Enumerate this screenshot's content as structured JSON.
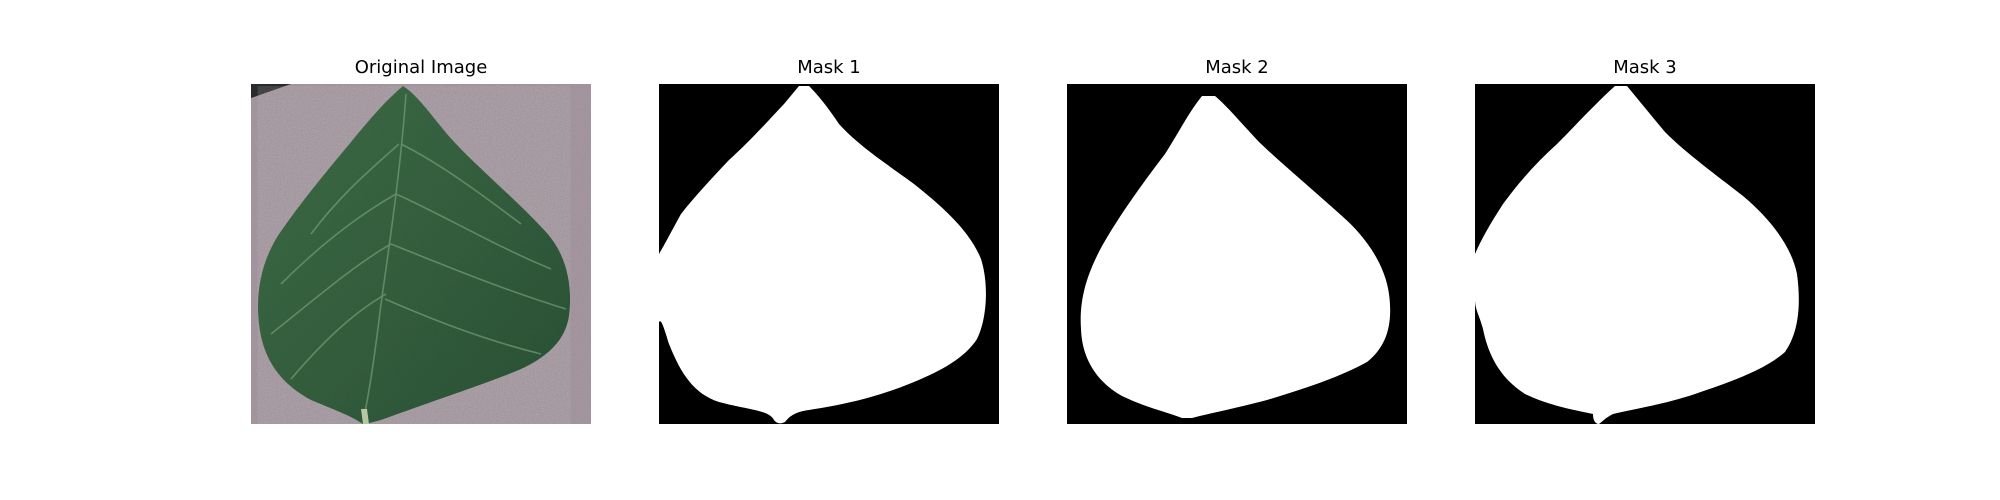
{
  "panels": [
    {
      "title": "Original Image",
      "kind": "photo"
    },
    {
      "title": "Mask 1",
      "kind": "mask"
    },
    {
      "title": "Mask 2",
      "kind": "mask"
    },
    {
      "title": "Mask 3",
      "kind": "mask"
    }
  ],
  "colors": {
    "background": "#ffffff",
    "mask_background": "#000000",
    "mask_foreground": "#ffffff",
    "leaf_dark": "#2e5a38",
    "leaf_light": "#4f7f55",
    "surface": "#a99aa3"
  }
}
